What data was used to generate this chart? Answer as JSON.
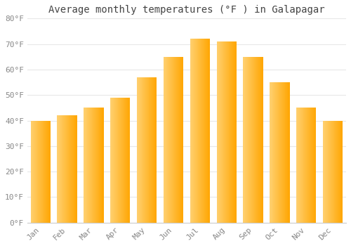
{
  "title": "Average monthly temperatures (°F ) in Galapagar",
  "months": [
    "Jan",
    "Feb",
    "Mar",
    "Apr",
    "May",
    "Jun",
    "Jul",
    "Aug",
    "Sep",
    "Oct",
    "Nov",
    "Dec"
  ],
  "values": [
    40,
    42,
    45,
    49,
    57,
    65,
    72,
    71,
    65,
    55,
    45,
    40
  ],
  "bar_color_left": "#FFD070",
  "bar_color_right": "#FFA500",
  "ylim": [
    0,
    80
  ],
  "yticks": [
    0,
    10,
    20,
    30,
    40,
    50,
    60,
    70,
    80
  ],
  "ytick_labels": [
    "0°F",
    "10°F",
    "20°F",
    "30°F",
    "40°F",
    "50°F",
    "60°F",
    "70°F",
    "80°F"
  ],
  "background_color": "#ffffff",
  "grid_color": "#e8e8e8",
  "title_fontsize": 10,
  "tick_fontsize": 8,
  "tick_color": "#888888",
  "title_color": "#444444"
}
